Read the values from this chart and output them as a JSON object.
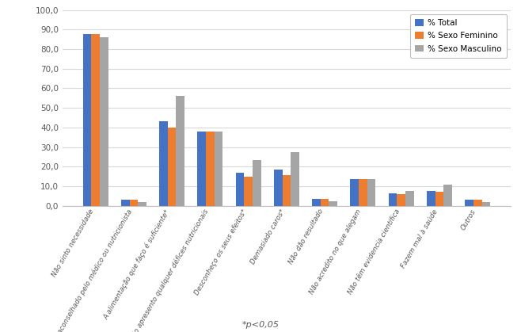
{
  "categories": [
    "Não sinto necessidade",
    "Desaconselhado pelo médico ou nutricionista",
    "A alimentação que faço é suficiente*",
    "Não apresento qualquer défices nutricionais",
    "Desconheço os seus efeitos*",
    "Demasiado caros*",
    "Não dão resultado",
    "Não acredito no que alegam",
    "Não têm evidencia científica",
    "Fazem mal à saúde",
    "Outros"
  ],
  "total": [
    87.5,
    3.0,
    43.0,
    38.0,
    17.0,
    18.5,
    3.5,
    13.5,
    6.5,
    7.5,
    3.0
  ],
  "feminino": [
    87.5,
    3.0,
    40.0,
    38.0,
    15.0,
    15.5,
    3.5,
    13.5,
    6.0,
    7.0,
    3.0
  ],
  "masculino": [
    86.0,
    2.0,
    56.0,
    38.0,
    23.5,
    27.5,
    2.5,
    13.5,
    7.5,
    11.0,
    2.0
  ],
  "color_total": "#4472C4",
  "color_feminino": "#ED7D31",
  "color_masculino": "#A5A5A5",
  "legend_total": "% Total",
  "legend_feminino": "% Sexo Feminino",
  "legend_masculino": "% Sexo Masculino",
  "ylim": [
    0,
    100
  ],
  "yticks": [
    0.0,
    10.0,
    20.0,
    30.0,
    40.0,
    50.0,
    60.0,
    70.0,
    80.0,
    90.0,
    100.0
  ],
  "footnote": "*p<0,05",
  "background_color": "#FFFFFF",
  "grid_color": "#D9D9D9"
}
